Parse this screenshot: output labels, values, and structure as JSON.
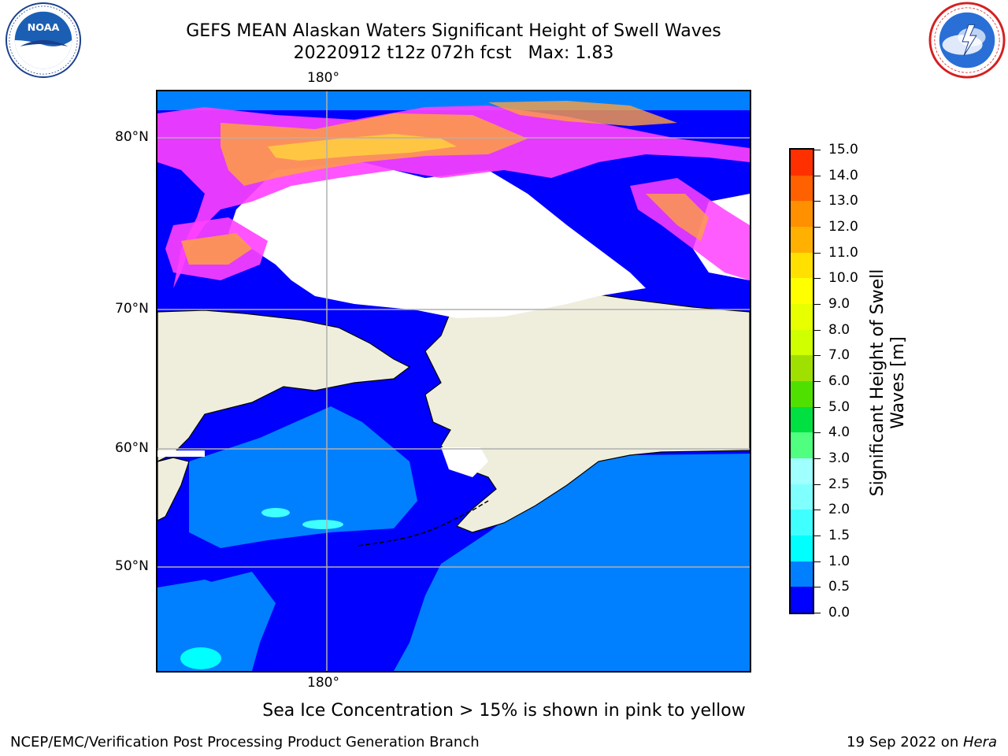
{
  "header": {
    "title_line1": "GEFS MEAN Alaskan Waters Significant Height of Swell Waves",
    "title_line2": "20220912 t12z 072h fcst   Max: 1.83"
  },
  "logos": {
    "left": "noaa-logo",
    "right": "national-weather-service-logo"
  },
  "map": {
    "lon_label_top": "180°",
    "lon_label_bottom": "180°",
    "lat_labels": [
      "80°N",
      "70°N",
      "60°N",
      "50°N"
    ],
    "colors": {
      "land": "#efeedd",
      "ice_mask": "#ffffff",
      "wave_0_05": "#0000ff",
      "wave_05_10": "#0080ff",
      "wave_10_15": "#00ffff",
      "wave_15_20": "#40ffff",
      "grid": "#b0b0b0",
      "sea_ice_pink": "#ff40ff",
      "sea_ice_orange": "#ffa040",
      "sea_ice_yellow": "#ffd040"
    }
  },
  "colorbar": {
    "label_line1": "Significant Height of Swell",
    "label_line2": "Waves [m]",
    "ticks": [
      "0.0",
      "0.5",
      "1.0",
      "1.5",
      "2.0",
      "2.5",
      "3.0",
      "4.0",
      "5.0",
      "6.0",
      "7.0",
      "8.0",
      "9.0",
      "10.0",
      "11.0",
      "12.0",
      "13.0",
      "14.0",
      "15.0"
    ],
    "segment_colors": [
      "#0000ff",
      "#0080ff",
      "#00ffff",
      "#40ffff",
      "#80ffff",
      "#a0ffff",
      "#50ff80",
      "#00e040",
      "#50e000",
      "#a0e000",
      "#d0ff00",
      "#e8ff00",
      "#ffff00",
      "#ffe000",
      "#ffb000",
      "#ff9000",
      "#ff6000",
      "#ff3000",
      "#ff0000"
    ]
  },
  "notes": {
    "sea_ice": "Sea Ice Concentration > 15% is shown in pink to yellow"
  },
  "footer": {
    "left": "NCEP/EMC/Verification Post Processing Product Generation Branch",
    "right_date": "19 Sep 2022 on ",
    "right_machine": "Hera"
  }
}
